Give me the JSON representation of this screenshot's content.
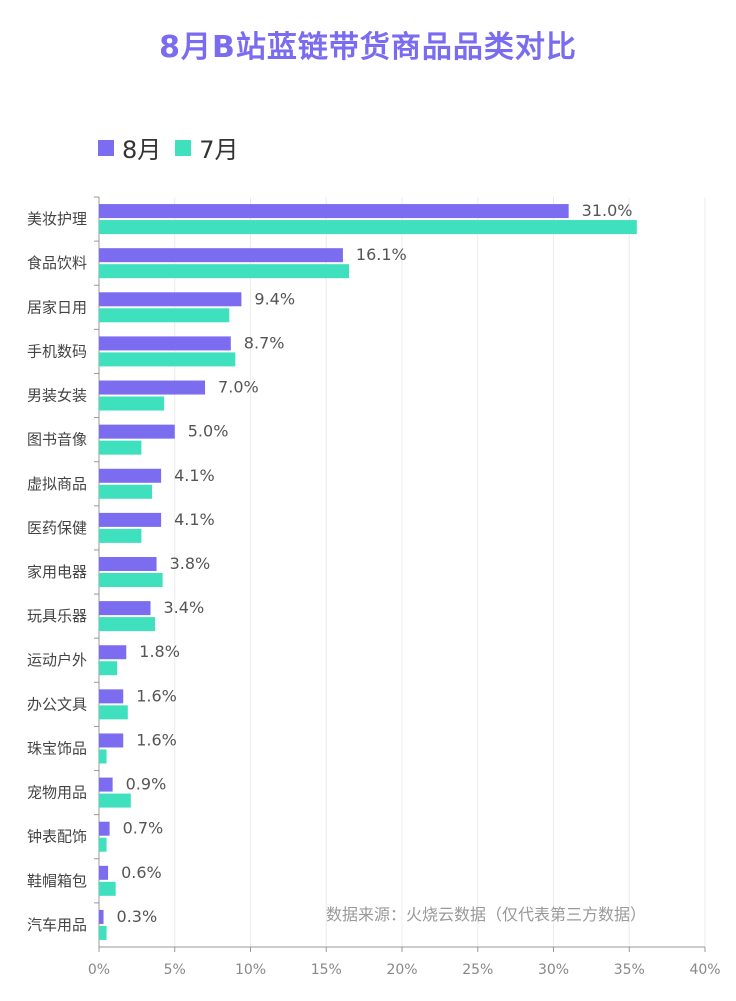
{
  "chart_data": {
    "type": "bar",
    "orientation": "horizontal",
    "title": "8月B站蓝链带货商品品类对比",
    "categories": [
      "美妆护理",
      "食品饮料",
      "居家日用",
      "手机数码",
      "男装女装",
      "图书音像",
      "虚拟商品",
      "医药保健",
      "家用电器",
      "玩具乐器",
      "运动户外",
      "办公文具",
      "珠宝饰品",
      "宠物用品",
      "钟表配饰",
      "鞋帽箱包",
      "汽车用品"
    ],
    "series": [
      {
        "name": "8月",
        "color": "#7b6cf0",
        "values": [
          31.0,
          16.1,
          9.4,
          8.7,
          7.0,
          5.0,
          4.1,
          4.1,
          3.8,
          3.4,
          1.8,
          1.6,
          1.6,
          0.9,
          0.7,
          0.6,
          0.3
        ],
        "labels": [
          "31.0%",
          "16.1%",
          "9.4%",
          "8.7%",
          "7.0%",
          "5.0%",
          "4.1%",
          "4.1%",
          "3.8%",
          "3.4%",
          "1.8%",
          "1.6%",
          "1.6%",
          "0.9%",
          "0.7%",
          "0.6%",
          "0.3%"
        ]
      },
      {
        "name": "7月",
        "color": "#3ee0bd",
        "values": [
          35.5,
          16.5,
          8.6,
          9.0,
          4.3,
          2.8,
          3.5,
          2.8,
          4.2,
          3.7,
          1.2,
          1.9,
          0.5,
          2.1,
          0.5,
          1.1,
          0.5
        ]
      }
    ],
    "xlim": [
      0,
      40
    ],
    "xticks": [
      "0%",
      "5%",
      "10%",
      "15%",
      "20%",
      "25%",
      "30%",
      "35%",
      "40%"
    ],
    "grid": true,
    "legend_position": "top-left"
  },
  "source_note": "数据来源：火烧云数据（仅代表第三方数据）"
}
